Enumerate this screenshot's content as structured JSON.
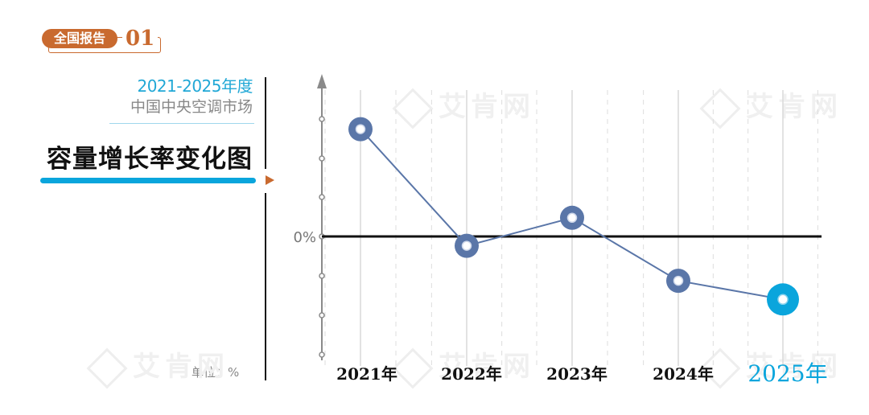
{
  "badge": {
    "label": "全国报告",
    "number": "01"
  },
  "subtitle": {
    "years": "2021-2025年度",
    "market": "中国中央空调市场"
  },
  "title": "容量增长率变化图",
  "unit_label": "单位：%",
  "watermark": "艾肯网",
  "colors": {
    "accent_orange": "#c96a2f",
    "accent_blue": "#0aa5dc",
    "series": "#5a76a8",
    "highlight": "#0aa5dc",
    "zero_line": "#111111"
  },
  "chart_data": {
    "type": "line",
    "categories": [
      "2021年",
      "2022年",
      "2023年",
      "2024年",
      "2025年"
    ],
    "series": [
      {
        "values": [
          23,
          -2,
          4,
          -9.5,
          -13.5
        ]
      }
    ],
    "highlight_index": 4,
    "ylabel": "",
    "ytick_labels": [
      "0%"
    ],
    "grid": true
  }
}
